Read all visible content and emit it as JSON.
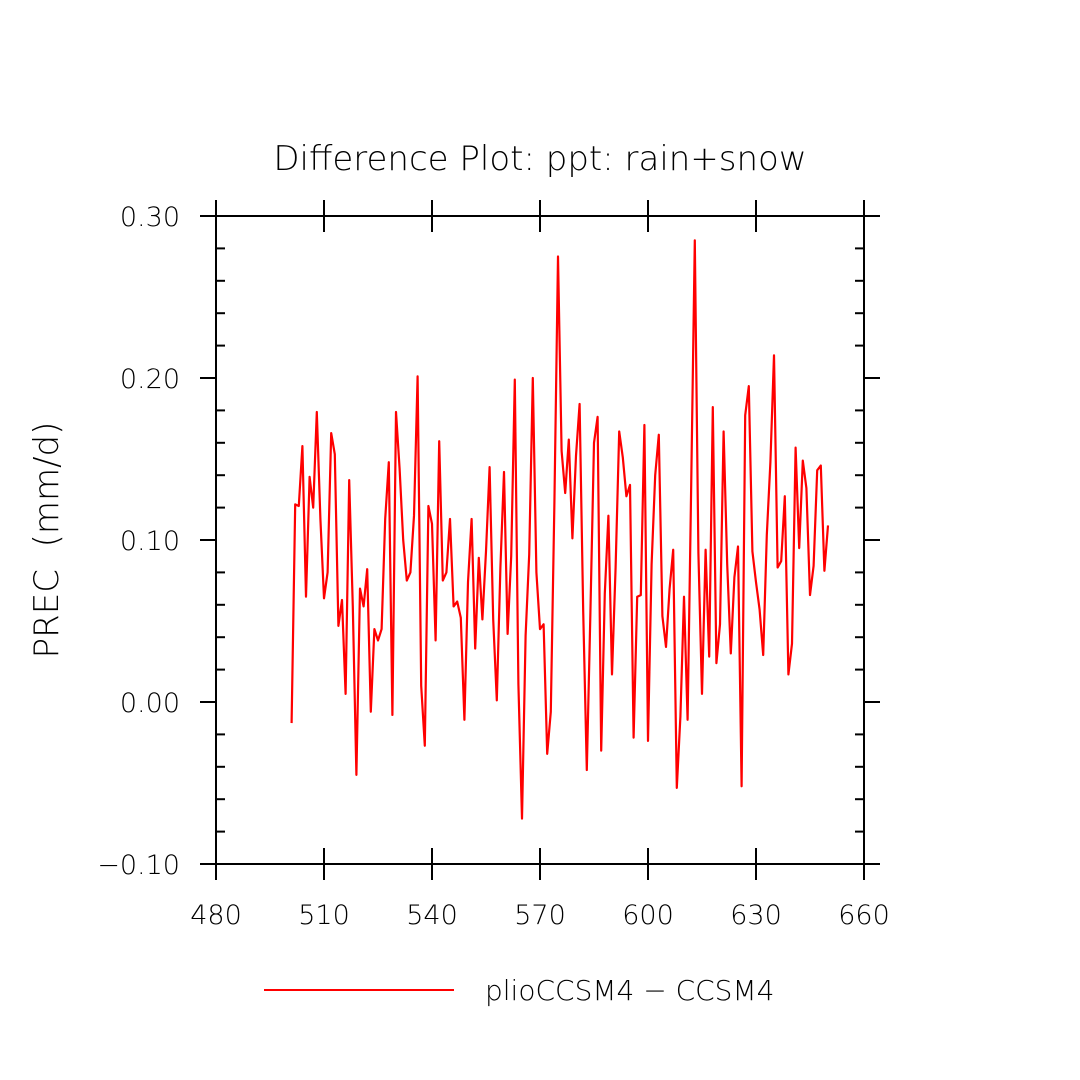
{
  "chart_data": {
    "type": "line",
    "title": "Difference Plot: ppt: rain+snow",
    "xlabel": "",
    "ylabel": "PREC  (mm/d)",
    "xlim": [
      480,
      660
    ],
    "ylim": [
      -0.1,
      0.3
    ],
    "x_ticks": [
      480,
      510,
      540,
      570,
      600,
      630,
      660
    ],
    "x_tick_labels": [
      "480",
      "510",
      "540",
      "570",
      "600",
      "630",
      "660"
    ],
    "y_ticks": [
      -0.1,
      0.0,
      0.1,
      0.2,
      0.3
    ],
    "y_tick_labels": [
      "−0.10",
      "0.00",
      "0.10",
      "0.20",
      "0.30"
    ],
    "grid": false,
    "legend_position": "bottom",
    "series": [
      {
        "name": "plioCCSM4 − CCSM4",
        "color": "#ff0000",
        "x": [
          501,
          502,
          503,
          504,
          505,
          506,
          507,
          508,
          509,
          510,
          511,
          512,
          513,
          514,
          515,
          516,
          517,
          518,
          519,
          520,
          521,
          522,
          523,
          524,
          525,
          526,
          527,
          528,
          529,
          530,
          531,
          532,
          533,
          534,
          535,
          536,
          537,
          538,
          539,
          540,
          541,
          542,
          543,
          544,
          545,
          546,
          547,
          548,
          549,
          550,
          551,
          552,
          553,
          554,
          555,
          556,
          557,
          558,
          559,
          560,
          561,
          562,
          563,
          564,
          565,
          566,
          567,
          568,
          569,
          570,
          571,
          572,
          573,
          574,
          575,
          576,
          577,
          578,
          579,
          580,
          581,
          582,
          583,
          584,
          585,
          586,
          587,
          588,
          589,
          590,
          591,
          592,
          593,
          594,
          595,
          596,
          597,
          598,
          599,
          600,
          601,
          602,
          603,
          604,
          605,
          606,
          607,
          608,
          609,
          610,
          611,
          612,
          613,
          614,
          615,
          616,
          617,
          618,
          619,
          620,
          621,
          622,
          623,
          624,
          625,
          626,
          627,
          628,
          629,
          630,
          631,
          632,
          633,
          634,
          635,
          636,
          637,
          638,
          639,
          640,
          641,
          642,
          643,
          644,
          645,
          646,
          647,
          648,
          649,
          650
        ],
        "y": [
          -0.013,
          0.122,
          0.121,
          0.158,
          0.065,
          0.139,
          0.12,
          0.179,
          0.113,
          0.064,
          0.08,
          0.166,
          0.153,
          0.047,
          0.063,
          0.005,
          0.137,
          0.059,
          -0.045,
          0.07,
          0.059,
          0.082,
          -0.006,
          0.045,
          0.038,
          0.045,
          0.113,
          0.148,
          -0.008,
          0.179,
          0.144,
          0.1,
          0.075,
          0.08,
          0.115,
          0.201,
          0.01,
          -0.027,
          0.121,
          0.11,
          0.038,
          0.161,
          0.075,
          0.08,
          0.113,
          0.059,
          0.062,
          0.052,
          -0.011,
          0.074,
          0.113,
          0.033,
          0.089,
          0.051,
          0.093,
          0.145,
          0.051,
          0.001,
          0.083,
          0.142,
          0.042,
          0.09,
          0.199,
          0.011,
          -0.072,
          0.041,
          0.091,
          0.2,
          0.08,
          0.045,
          0.048,
          -0.032,
          -0.006,
          0.123,
          0.275,
          0.155,
          0.129,
          0.162,
          0.101,
          0.152,
          0.184,
          0.056,
          -0.042,
          0.055,
          0.16,
          0.176,
          -0.03,
          0.067,
          0.115,
          0.017,
          0.083,
          0.167,
          0.151,
          0.127,
          0.134,
          -0.022,
          0.065,
          0.066,
          0.171,
          -0.024,
          0.085,
          0.14,
          0.165,
          0.053,
          0.034,
          0.07,
          0.094,
          -0.053,
          -0.009,
          0.065,
          -0.011,
          0.134,
          0.285,
          0.092,
          0.005,
          0.094,
          0.028,
          0.182,
          0.024,
          0.048,
          0.167,
          0.085,
          0.03,
          0.077,
          0.096,
          -0.052,
          0.177,
          0.195,
          0.093,
          0.074,
          0.057,
          0.029,
          0.103,
          0.148,
          0.214,
          0.083,
          0.087,
          0.127,
          0.017,
          0.036,
          0.157,
          0.095,
          0.149,
          0.132,
          0.066,
          0.084,
          0.143,
          0.146,
          0.081,
          0.109
        ]
      }
    ]
  }
}
